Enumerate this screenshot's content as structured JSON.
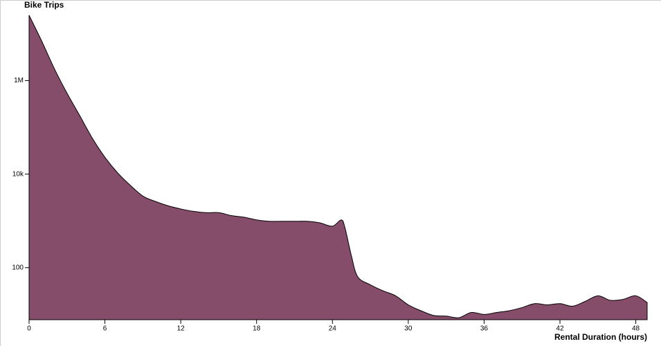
{
  "chart_data": {
    "type": "area",
    "title": "Bike Trips",
    "x_label": "Rental Duration (hours)",
    "x": [
      0,
      1,
      2,
      3,
      4,
      5,
      6,
      7,
      8,
      9,
      10,
      11,
      12,
      13,
      14,
      15,
      16,
      17,
      18,
      19,
      20,
      21,
      22,
      23,
      24,
      24.7,
      25,
      25.5,
      26,
      27,
      28,
      29,
      30,
      31,
      32,
      33,
      34,
      35,
      36,
      37,
      38,
      39,
      40,
      41,
      42,
      43,
      44,
      45,
      46,
      47,
      48,
      48.9
    ],
    "values": [
      25000000,
      7000000,
      1800000,
      540000,
      180000,
      59000,
      23000,
      10700,
      5800,
      3400,
      2600,
      2100,
      1800,
      1600,
      1500,
      1500,
      1300,
      1200,
      1050,
      980,
      980,
      980,
      980,
      910,
      770,
      1050,
      700,
      180,
      64,
      43,
      32,
      25,
      16,
      12,
      9.5,
      9.2,
      8.5,
      11,
      10,
      11,
      12,
      14,
      17,
      16,
      17,
      15,
      19,
      25,
      20,
      21,
      25,
      18
    ],
    "color": "#854d6a",
    "xlim": [
      0,
      48.9
    ],
    "xticks": [
      0,
      6,
      12,
      18,
      24,
      30,
      36,
      42,
      48
    ],
    "ylim": [
      7.7,
      25000000
    ],
    "yticks": [
      100,
      {
        "value": 10000,
        "label": "10k"
      },
      {
        "value": 1000000,
        "label": "1M"
      }
    ],
    "log_scale": true
  }
}
